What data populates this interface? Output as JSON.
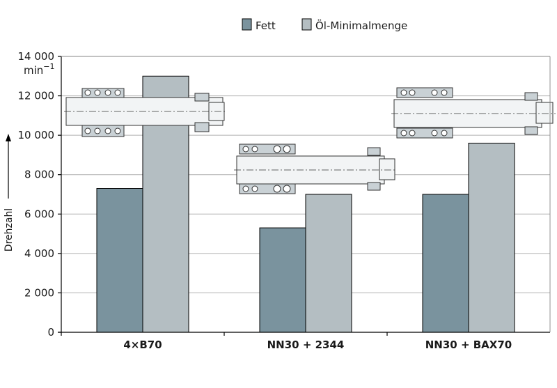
{
  "chart_data": {
    "type": "bar",
    "categories": [
      "4×B70",
      "NN30 + 2344",
      "NN30 + BAX70"
    ],
    "series": [
      {
        "name": "Fett",
        "values": [
          7300,
          5300,
          7000
        ]
      },
      {
        "name": "Öl-Minimalmenge",
        "values": [
          13000,
          7000,
          9600
        ]
      }
    ],
    "ylabel": "Drehzahl",
    "yunit": "min",
    "yunit_exp": "−1",
    "ylim": [
      0,
      14000
    ],
    "yticks": [
      0,
      2000,
      4000,
      6000,
      8000,
      10000,
      12000,
      14000
    ],
    "ytick_labels": [
      "0",
      "2 000",
      "4 000",
      "6 000",
      "8 000",
      "10 000",
      "12 000",
      "14 000"
    ],
    "grid": true,
    "legend": "top-center",
    "colors": {
      "Fett": "#7a939e",
      "Öl-Minimalmenge": "#b4bec2",
      "grid": "#b0b0b0",
      "axis": "#000000"
    },
    "annotations": [
      "bearing-arrangement-drawing-4xB70",
      "bearing-arrangement-drawing-NN30-2344",
      "bearing-arrangement-drawing-NN30-BAX70"
    ]
  }
}
